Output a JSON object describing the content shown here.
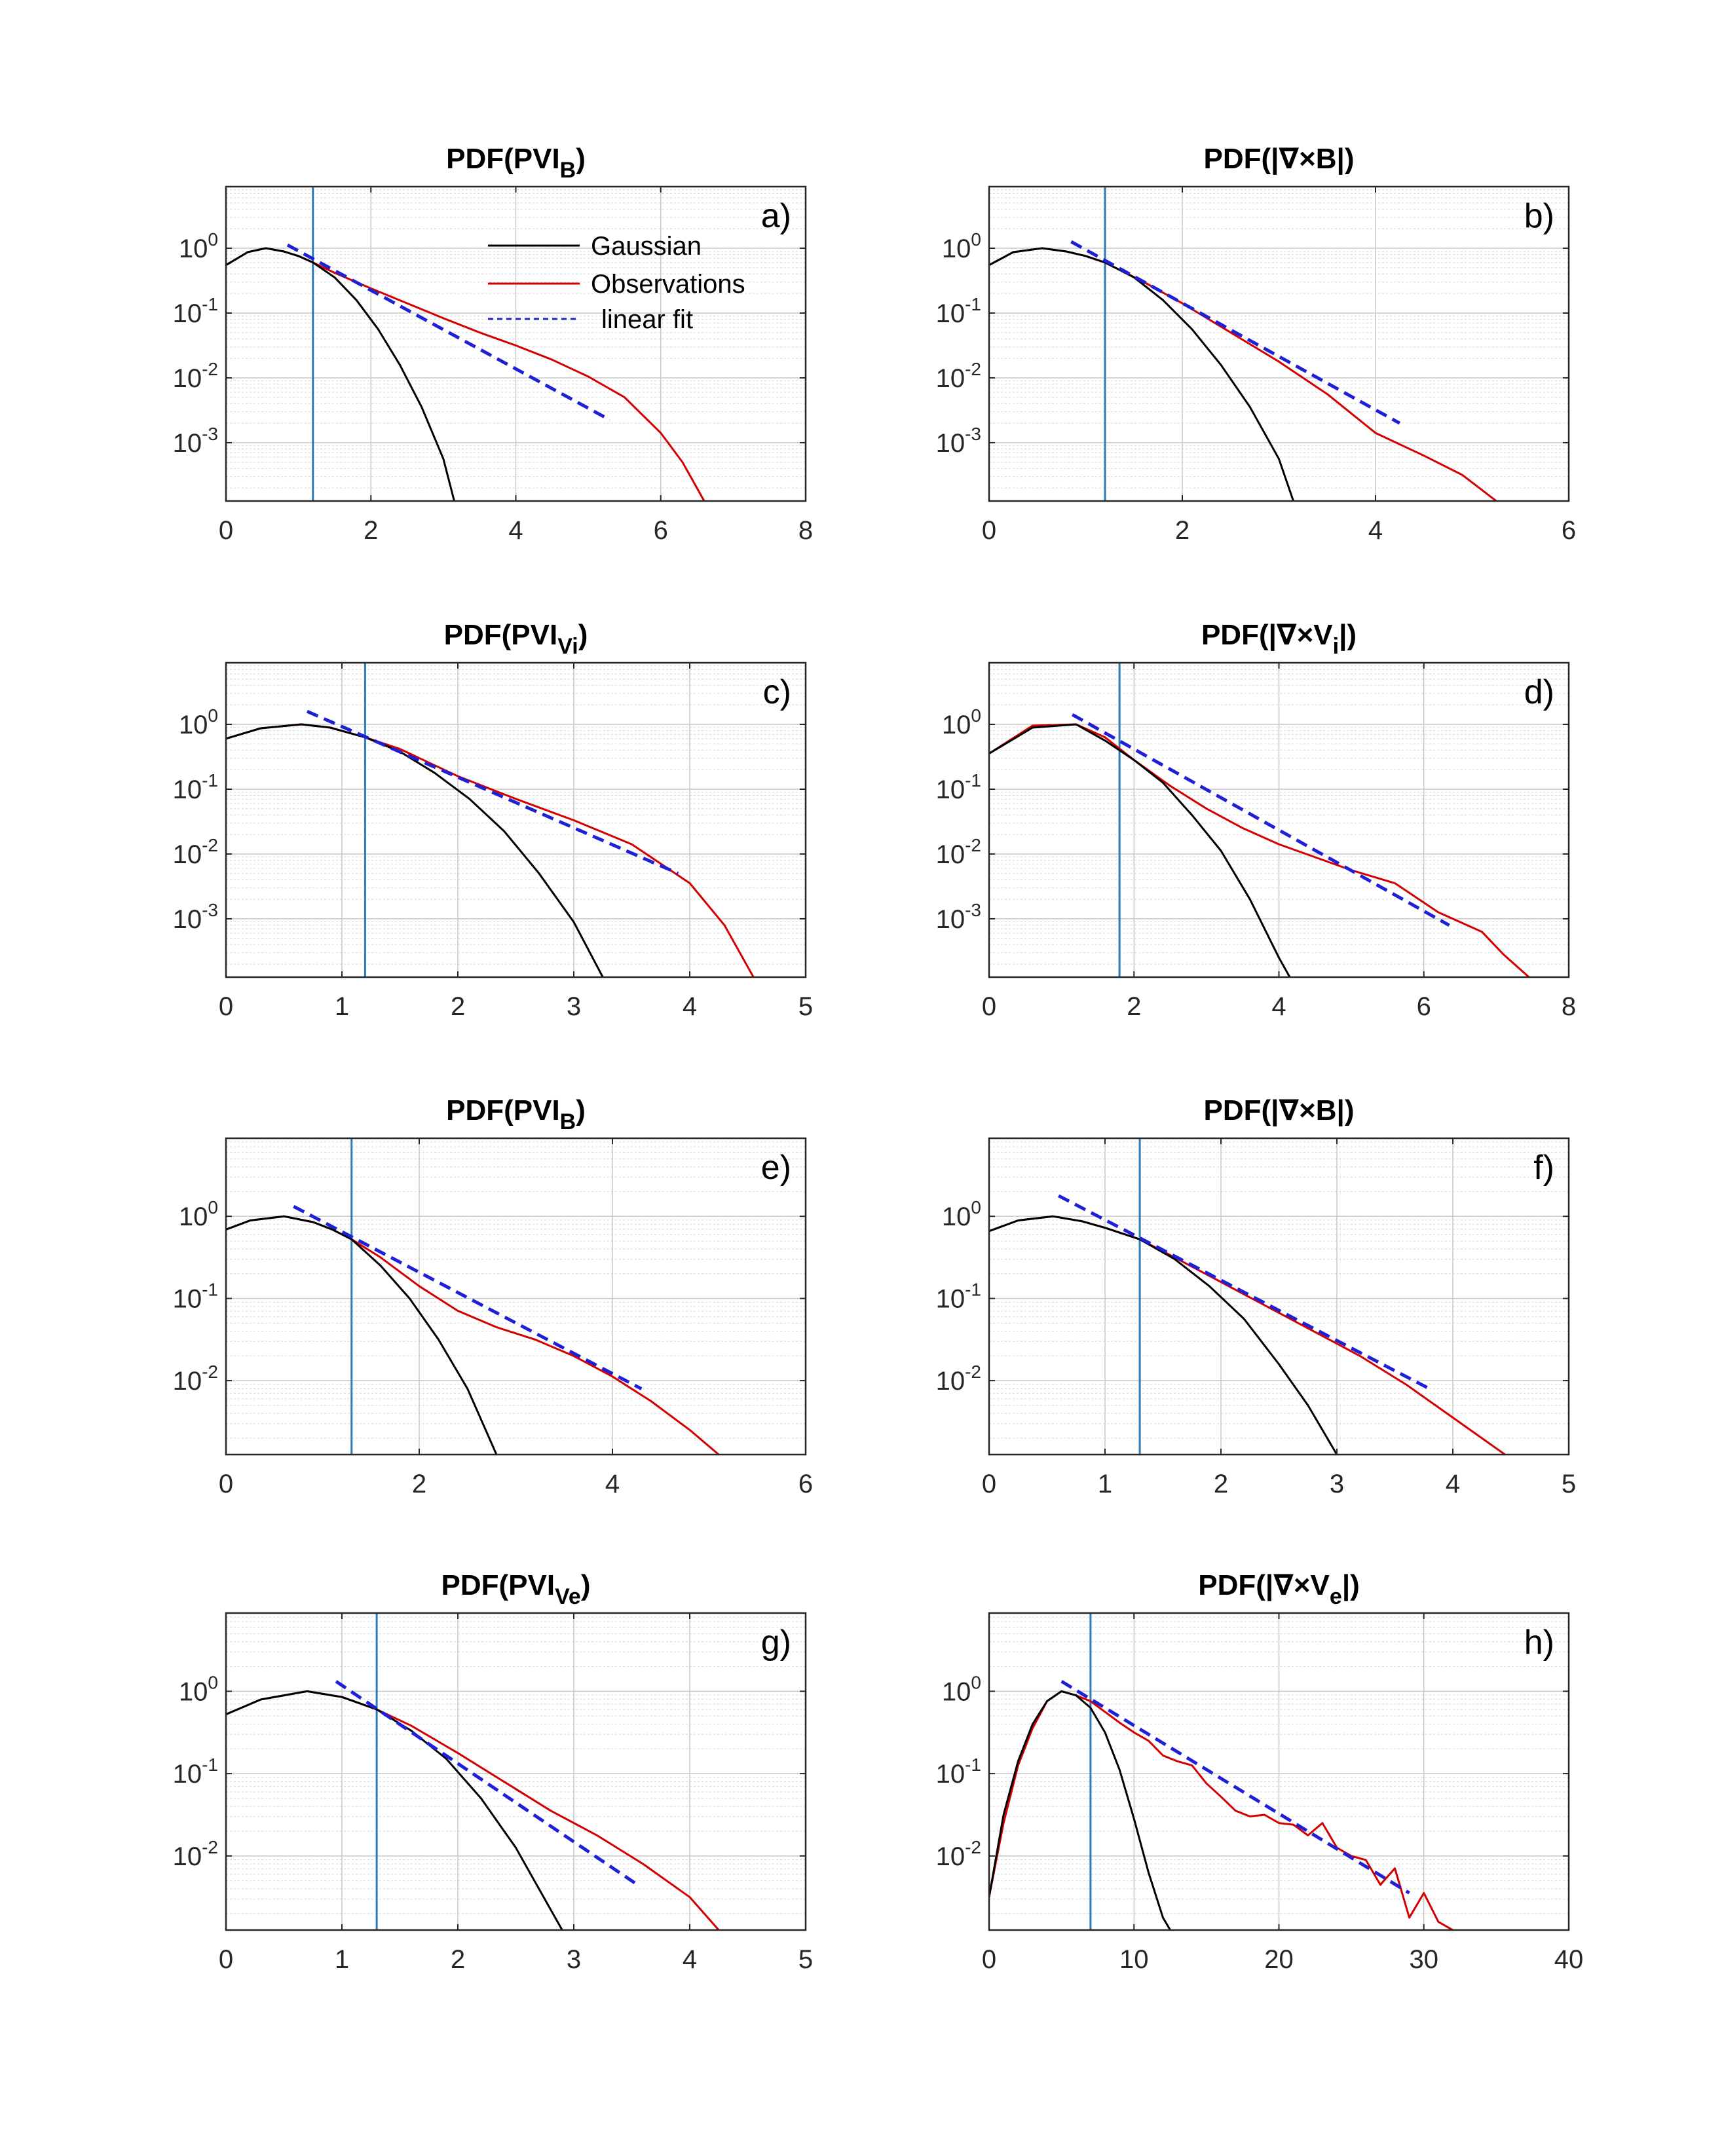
{
  "legend": {
    "entries": [
      {
        "label": "Gaussian",
        "color": "#000000",
        "style": "solid"
      },
      {
        "label": "Observations",
        "color": "#d40000",
        "style": "solid"
      },
      {
        "label": "linear fit",
        "color": "#1f1fd6",
        "style": "dashed"
      }
    ],
    "placement": "in panel a, upper middle"
  },
  "colors": {
    "gaussian": "#000000",
    "observations": "#d40000",
    "fit": "#1f1fd6",
    "threshold": "#2b7bb9",
    "grid": "#c8c8c8"
  },
  "chart_data": [
    {
      "type": "line",
      "label": "a)",
      "title": {
        "main": "PDF(PVI",
        "sub": "B",
        "tail": ")"
      },
      "xlim": [
        0,
        8
      ],
      "xticks": [
        0,
        2,
        4,
        6,
        8
      ],
      "ylim": [
        -3.9,
        0.95
      ],
      "yscale": "log10",
      "yticks": [
        {
          "exp": 0,
          "label": "10",
          "sup": "0"
        },
        {
          "exp": -1,
          "label": "10",
          "sup": "-1"
        },
        {
          "exp": -2,
          "label": "10",
          "sup": "-2"
        },
        {
          "exp": -3,
          "label": "10",
          "sup": "-3"
        }
      ],
      "threshold_x": 1.2,
      "series": [
        {
          "role": "gaussian",
          "x": [
            0,
            0.3,
            0.55,
            0.8,
            1.0,
            1.2,
            1.5,
            1.8,
            2.1,
            2.4,
            2.7,
            3.0,
            3.15
          ],
          "y": [
            -0.26,
            -0.06,
            0.0,
            -0.05,
            -0.12,
            -0.22,
            -0.45,
            -0.8,
            -1.25,
            -1.8,
            -2.45,
            -3.25,
            -3.9
          ]
        },
        {
          "role": "observations",
          "x": [
            0,
            0.3,
            0.55,
            0.8,
            1.0,
            1.2,
            1.5,
            2.0,
            2.5,
            3.0,
            3.5,
            4.0,
            4.5,
            5.0,
            5.5,
            6.0,
            6.3,
            6.6
          ],
          "y": [
            -0.26,
            -0.06,
            0.0,
            -0.05,
            -0.12,
            -0.22,
            -0.38,
            -0.62,
            -0.85,
            -1.08,
            -1.3,
            -1.5,
            -1.72,
            -1.98,
            -2.3,
            -2.85,
            -3.3,
            -3.9
          ]
        },
        {
          "role": "fit",
          "x": [
            0.85,
            5.3
          ],
          "y": [
            0.05,
            -2.65
          ]
        }
      ]
    },
    {
      "type": "line",
      "label": "b)",
      "title": {
        "main": "PDF(|∇×B|)",
        "sub": "",
        "tail": ""
      },
      "xlim": [
        0,
        6
      ],
      "xticks": [
        0,
        2,
        4,
        6
      ],
      "ylim": [
        -3.9,
        0.95
      ],
      "yscale": "log10",
      "yticks": [
        {
          "exp": 0,
          "label": "10",
          "sup": "0"
        },
        {
          "exp": -1,
          "label": "10",
          "sup": "-1"
        },
        {
          "exp": -2,
          "label": "10",
          "sup": "-2"
        },
        {
          "exp": -3,
          "label": "10",
          "sup": "-3"
        }
      ],
      "threshold_x": 1.2,
      "series": [
        {
          "role": "gaussian",
          "x": [
            0,
            0.25,
            0.55,
            0.8,
            1.0,
            1.2,
            1.5,
            1.8,
            2.1,
            2.4,
            2.7,
            3.0,
            3.15
          ],
          "y": [
            -0.26,
            -0.06,
            0.0,
            -0.05,
            -0.12,
            -0.22,
            -0.45,
            -0.8,
            -1.25,
            -1.8,
            -2.45,
            -3.25,
            -3.9
          ]
        },
        {
          "role": "observations",
          "x": [
            0,
            0.25,
            0.55,
            0.8,
            1.0,
            1.2,
            1.6,
            2.0,
            2.5,
            3.0,
            3.5,
            4.0,
            4.5,
            4.9,
            5.25
          ],
          "y": [
            -0.26,
            -0.06,
            0.0,
            -0.05,
            -0.12,
            -0.22,
            -0.52,
            -0.85,
            -1.3,
            -1.75,
            -2.25,
            -2.85,
            -3.2,
            -3.5,
            -3.9
          ]
        },
        {
          "role": "fit",
          "x": [
            0.85,
            4.25
          ],
          "y": [
            0.1,
            -2.7
          ]
        }
      ]
    },
    {
      "type": "line",
      "label": "c)",
      "title": {
        "main": "PDF(PVI",
        "sub": "Vi",
        "tail": ")"
      },
      "xlim": [
        0,
        5
      ],
      "xticks": [
        0,
        1,
        2,
        3,
        4,
        5
      ],
      "ylim": [
        -3.9,
        0.95
      ],
      "yscale": "log10",
      "yticks": [
        {
          "exp": 0,
          "label": "10",
          "sup": "0"
        },
        {
          "exp": -1,
          "label": "10",
          "sup": "-1"
        },
        {
          "exp": -2,
          "label": "10",
          "sup": "-2"
        },
        {
          "exp": -3,
          "label": "10",
          "sup": "-3"
        }
      ],
      "threshold_x": 1.2,
      "series": [
        {
          "role": "gaussian",
          "x": [
            0,
            0.3,
            0.65,
            0.9,
            1.2,
            1.5,
            1.8,
            2.1,
            2.4,
            2.7,
            3.0,
            3.25
          ],
          "y": [
            -0.22,
            -0.06,
            0.0,
            -0.05,
            -0.2,
            -0.42,
            -0.75,
            -1.15,
            -1.65,
            -2.3,
            -3.05,
            -3.9
          ]
        },
        {
          "role": "observations",
          "x": [
            0,
            0.3,
            0.65,
            0.9,
            1.2,
            1.5,
            2.0,
            2.5,
            3.0,
            3.5,
            4.0,
            4.3,
            4.55
          ],
          "y": [
            -0.22,
            -0.06,
            0.0,
            -0.05,
            -0.2,
            -0.38,
            -0.8,
            -1.15,
            -1.48,
            -1.85,
            -2.45,
            -3.1,
            -3.9
          ]
        },
        {
          "role": "fit",
          "x": [
            0.7,
            3.9
          ],
          "y": [
            0.2,
            -2.3
          ]
        }
      ]
    },
    {
      "type": "line",
      "label": "d)",
      "title": {
        "main": "PDF(|∇×V",
        "sub": "i",
        "tail": "|)"
      },
      "xlim": [
        0,
        8
      ],
      "xticks": [
        0,
        2,
        4,
        6,
        8
      ],
      "ylim": [
        -3.9,
        0.95
      ],
      "yscale": "log10",
      "yticks": [
        {
          "exp": 0,
          "label": "10",
          "sup": "0"
        },
        {
          "exp": -1,
          "label": "10",
          "sup": "-1"
        },
        {
          "exp": -2,
          "label": "10",
          "sup": "-2"
        },
        {
          "exp": -3,
          "label": "10",
          "sup": "-3"
        }
      ],
      "threshold_x": 1.8,
      "series": [
        {
          "role": "gaussian",
          "x": [
            0,
            0.6,
            1.2,
            1.6,
            2.0,
            2.4,
            2.8,
            3.2,
            3.6,
            4.0,
            4.15
          ],
          "y": [
            -0.45,
            -0.05,
            0.0,
            -0.25,
            -0.55,
            -0.9,
            -1.4,
            -1.95,
            -2.7,
            -3.6,
            -3.9
          ]
        },
        {
          "role": "observations",
          "x": [
            0,
            0.6,
            1.2,
            1.6,
            2.0,
            2.5,
            3.0,
            3.5,
            4.0,
            4.5,
            5.0,
            5.6,
            6.2,
            6.8,
            7.1,
            7.45
          ],
          "y": [
            -0.45,
            -0.02,
            0.0,
            -0.2,
            -0.55,
            -0.95,
            -1.3,
            -1.6,
            -1.85,
            -2.05,
            -2.25,
            -2.45,
            -2.9,
            -3.2,
            -3.55,
            -3.9
          ]
        },
        {
          "role": "fit",
          "x": [
            1.15,
            6.35
          ],
          "y": [
            0.15,
            -3.1
          ]
        }
      ]
    },
    {
      "type": "line",
      "label": "e)",
      "title": {
        "main": "PDF(PVI",
        "sub": "B",
        "tail": ")"
      },
      "xlim": [
        0,
        6
      ],
      "xticks": [
        0,
        2,
        4,
        6
      ],
      "ylim": [
        -2.9,
        0.95
      ],
      "yscale": "log10",
      "yticks": [
        {
          "exp": 0,
          "label": "10",
          "sup": "0"
        },
        {
          "exp": -1,
          "label": "10",
          "sup": "-1"
        },
        {
          "exp": -2,
          "label": "10",
          "sup": "-2"
        }
      ],
      "threshold_x": 1.3,
      "series": [
        {
          "role": "gaussian",
          "x": [
            0,
            0.25,
            0.6,
            0.9,
            1.1,
            1.3,
            1.6,
            1.9,
            2.2,
            2.5,
            2.8
          ],
          "y": [
            -0.16,
            -0.05,
            0.0,
            -0.07,
            -0.16,
            -0.28,
            -0.6,
            -1.0,
            -1.5,
            -2.1,
            -2.9
          ]
        },
        {
          "role": "observations",
          "x": [
            0,
            0.25,
            0.6,
            0.9,
            1.1,
            1.3,
            1.6,
            2.0,
            2.4,
            2.8,
            3.2,
            3.6,
            4.0,
            4.4,
            4.8,
            5.1
          ],
          "y": [
            -0.16,
            -0.05,
            0.0,
            -0.07,
            -0.16,
            -0.28,
            -0.5,
            -0.85,
            -1.15,
            -1.35,
            -1.5,
            -1.7,
            -1.95,
            -2.25,
            -2.6,
            -2.9
          ]
        },
        {
          "role": "fit",
          "x": [
            0.7,
            4.3
          ],
          "y": [
            0.12,
            -2.1
          ]
        }
      ]
    },
    {
      "type": "line",
      "label": "f)",
      "title": {
        "main": "PDF(|∇×B|)",
        "sub": "",
        "tail": ""
      },
      "xlim": [
        0,
        5
      ],
      "xticks": [
        0,
        1,
        2,
        3,
        4,
        5
      ],
      "ylim": [
        -2.9,
        0.95
      ],
      "yscale": "log10",
      "yticks": [
        {
          "exp": 0,
          "label": "10",
          "sup": "0"
        },
        {
          "exp": -1,
          "label": "10",
          "sup": "-1"
        },
        {
          "exp": -2,
          "label": "10",
          "sup": "-2"
        }
      ],
      "threshold_x": 1.3,
      "series": [
        {
          "role": "gaussian",
          "x": [
            0,
            0.25,
            0.55,
            0.8,
            1.0,
            1.3,
            1.6,
            1.9,
            2.2,
            2.5,
            2.75,
            3.0
          ],
          "y": [
            -0.18,
            -0.05,
            0.0,
            -0.06,
            -0.14,
            -0.28,
            -0.52,
            -0.85,
            -1.25,
            -1.8,
            -2.3,
            -2.9
          ]
        },
        {
          "role": "observations",
          "x": [
            0,
            0.25,
            0.55,
            0.8,
            1.0,
            1.3,
            1.6,
            2.0,
            2.4,
            2.8,
            3.2,
            3.6,
            4.0,
            4.25,
            4.45
          ],
          "y": [
            -0.18,
            -0.05,
            0.0,
            -0.06,
            -0.14,
            -0.28,
            -0.5,
            -0.8,
            -1.1,
            -1.4,
            -1.7,
            -2.05,
            -2.45,
            -2.7,
            -2.9
          ]
        },
        {
          "role": "fit",
          "x": [
            0.6,
            3.8
          ],
          "y": [
            0.25,
            -2.1
          ]
        }
      ]
    },
    {
      "type": "line",
      "label": "g)",
      "title": {
        "main": "PDF(PVI",
        "sub": "Ve",
        "tail": ")"
      },
      "xlim": [
        0,
        5
      ],
      "xticks": [
        0,
        1,
        2,
        3,
        4,
        5
      ],
      "ylim": [
        -2.9,
        0.95
      ],
      "yscale": "log10",
      "yticks": [
        {
          "exp": 0,
          "label": "10",
          "sup": "0"
        },
        {
          "exp": -1,
          "label": "10",
          "sup": "-1"
        },
        {
          "exp": -2,
          "label": "10",
          "sup": "-2"
        }
      ],
      "threshold_x": 1.3,
      "series": [
        {
          "role": "gaussian",
          "x": [
            0,
            0.3,
            0.7,
            1.0,
            1.3,
            1.6,
            1.9,
            2.2,
            2.5,
            2.8,
            2.9
          ],
          "y": [
            -0.28,
            -0.1,
            0.0,
            -0.07,
            -0.22,
            -0.48,
            -0.82,
            -1.3,
            -1.9,
            -2.65,
            -2.9
          ]
        },
        {
          "role": "observations",
          "x": [
            0,
            0.3,
            0.7,
            1.0,
            1.3,
            1.6,
            2.0,
            2.4,
            2.8,
            3.2,
            3.6,
            4.0,
            4.25
          ],
          "y": [
            -0.28,
            -0.1,
            0.0,
            -0.07,
            -0.22,
            -0.42,
            -0.75,
            -1.1,
            -1.45,
            -1.75,
            -2.1,
            -2.5,
            -2.9
          ]
        },
        {
          "role": "fit",
          "x": [
            0.95,
            3.55
          ],
          "y": [
            0.12,
            -2.35
          ]
        }
      ]
    },
    {
      "type": "line",
      "label": "h)",
      "title": {
        "main": "PDF(|∇×V",
        "sub": "e",
        "tail": "|)"
      },
      "xlim": [
        0,
        40
      ],
      "xticks": [
        0,
        10,
        20,
        30,
        40
      ],
      "ylim": [
        -2.9,
        0.95
      ],
      "yscale": "log10",
      "yticks": [
        {
          "exp": 0,
          "label": "10",
          "sup": "0"
        },
        {
          "exp": -1,
          "label": "10",
          "sup": "-1"
        },
        {
          "exp": -2,
          "label": "10",
          "sup": "-2"
        }
      ],
      "threshold_x": 7,
      "series": [
        {
          "role": "gaussian",
          "x": [
            0,
            1,
            2,
            3,
            4,
            5,
            6,
            7,
            8,
            9,
            10,
            11,
            12,
            12.5
          ],
          "y": [
            -2.5,
            -1.5,
            -0.85,
            -0.4,
            -0.12,
            0.0,
            -0.05,
            -0.2,
            -0.5,
            -0.95,
            -1.55,
            -2.2,
            -2.75,
            -2.9
          ]
        },
        {
          "role": "observations",
          "x": [
            0,
            1,
            2,
            3,
            4,
            5,
            6,
            7,
            8,
            9,
            10,
            11,
            12,
            13,
            14,
            15,
            16,
            17,
            18,
            19,
            20,
            21,
            22,
            23,
            24,
            25,
            26,
            27,
            28,
            29,
            30,
            31,
            32
          ],
          "y": [
            -2.5,
            -1.6,
            -0.9,
            -0.45,
            -0.12,
            0.0,
            -0.05,
            -0.12,
            -0.25,
            -0.38,
            -0.5,
            -0.6,
            -0.78,
            -0.85,
            -0.9,
            -1.12,
            -1.28,
            -1.45,
            -1.52,
            -1.5,
            -1.6,
            -1.62,
            -1.75,
            -1.6,
            -1.9,
            -2.0,
            -2.05,
            -2.35,
            -2.15,
            -2.75,
            -2.45,
            -2.8,
            -2.9
          ]
        },
        {
          "role": "fit",
          "x": [
            5,
            29
          ],
          "y": [
            0.12,
            -2.45
          ]
        }
      ]
    }
  ]
}
